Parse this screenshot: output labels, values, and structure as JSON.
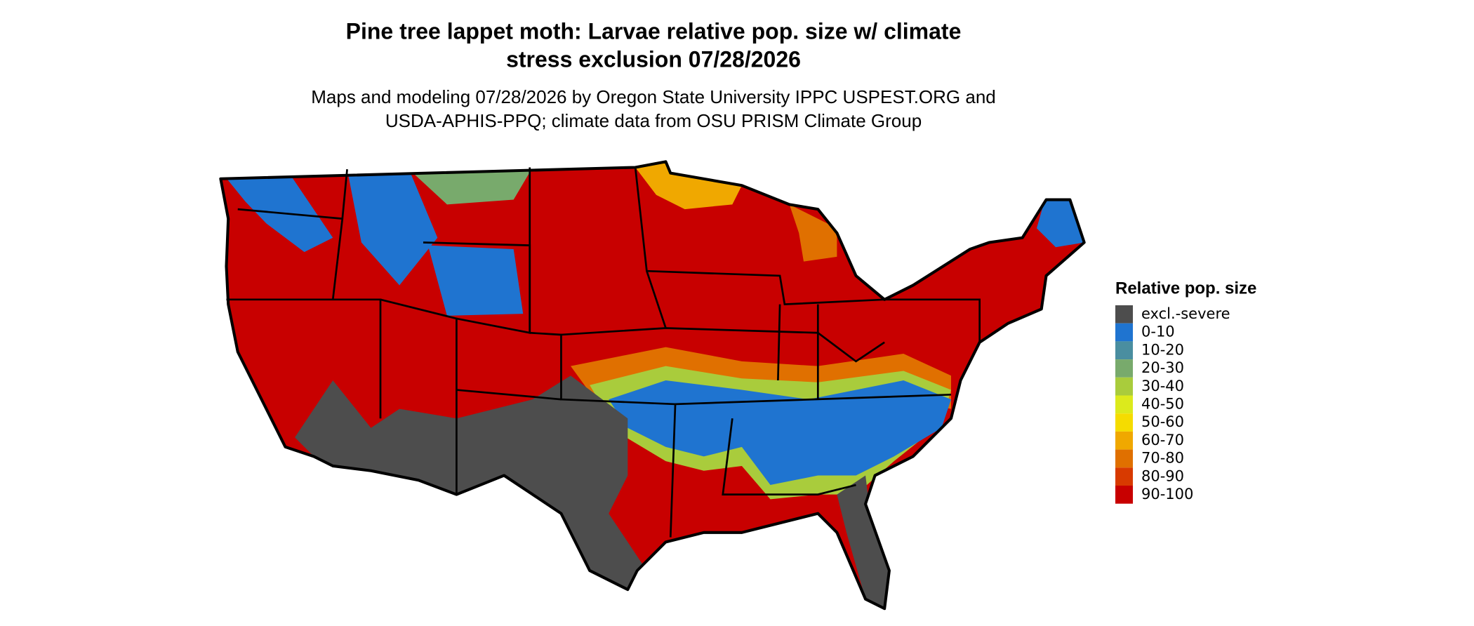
{
  "header": {
    "title_line1": "Pine tree lappet moth: Larvae relative pop. size w/ climate",
    "title_line2": "stress exclusion 07/28/2026",
    "subtitle_line1": "Maps and modeling 07/28/2026 by Oregon State University IPPC USPEST.ORG and",
    "subtitle_line2": "USDA-APHIS-PPQ; climate data from OSU PRISM Climate Group"
  },
  "legend": {
    "title": "Relative pop. size",
    "items": [
      {
        "label": "excl.-severe",
        "color": "#4d4d4d"
      },
      {
        "label": "0-10",
        "color": "#1f74d0"
      },
      {
        "label": "10-20",
        "color": "#4a8ea0"
      },
      {
        "label": "20-30",
        "color": "#78aa6c"
      },
      {
        "label": "30-40",
        "color": "#a9cc3c"
      },
      {
        "label": "40-50",
        "color": "#dcea1c"
      },
      {
        "label": "50-60",
        "color": "#f5dc00"
      },
      {
        "label": "60-70",
        "color": "#f0a800"
      },
      {
        "label": "70-80",
        "color": "#e07000"
      },
      {
        "label": "80-90",
        "color": "#d83a00"
      },
      {
        "label": "90-100",
        "color": "#c80000"
      }
    ]
  }
}
